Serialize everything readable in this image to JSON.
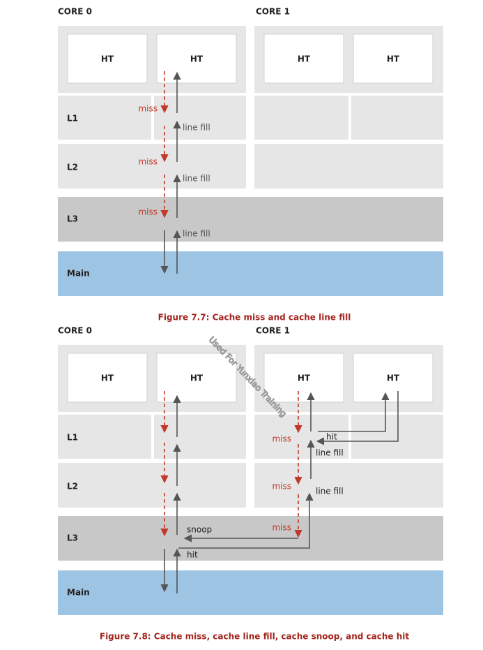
{
  "figures": [
    {
      "cores": [
        "CORE 0",
        "CORE 1"
      ],
      "ht": [
        "HT",
        "HT",
        "HT",
        "HT"
      ],
      "levels": [
        "L1",
        "L2",
        "L3",
        "Main"
      ],
      "annotations": [
        "miss",
        "line fill",
        "miss",
        "line fill",
        "miss",
        "line fill"
      ],
      "caption": "Figure 7.7: Cache miss and cache line fill"
    },
    {
      "cores": [
        "CORE 0",
        "CORE 1"
      ],
      "ht": [
        "HT",
        "HT",
        "HT",
        "HT"
      ],
      "levels": [
        "L1",
        "L2",
        "L3",
        "Main"
      ],
      "annotations": [
        "miss",
        "hit",
        "line fill",
        "miss",
        "line fill",
        "miss",
        "snoop",
        "hit"
      ],
      "caption": "Figure 7.8: Cache miss, cache line fill, cache snoop, and cache hit"
    }
  ],
  "watermark": "Used For Yunxiao Training"
}
